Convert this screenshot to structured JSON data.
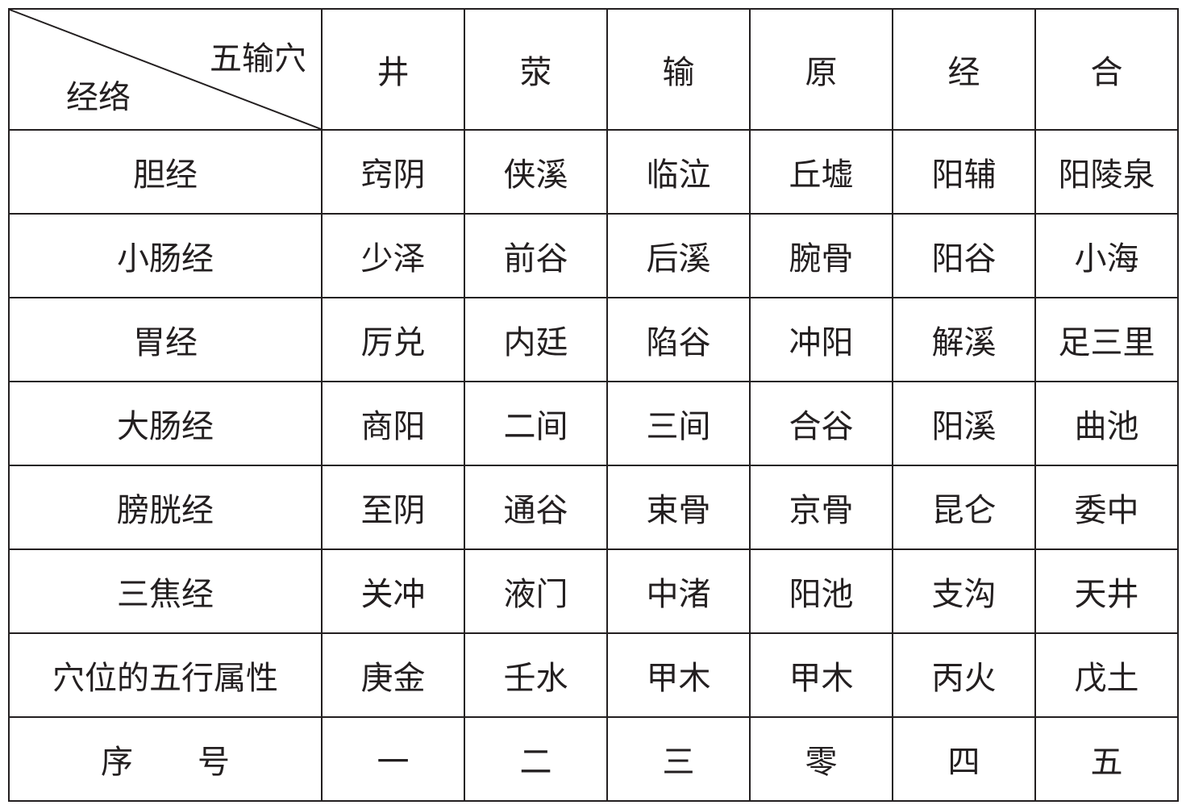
{
  "table": {
    "corner_top": "五输穴",
    "corner_bottom": "经络",
    "headers": [
      "井",
      "荥",
      "输",
      "原",
      "经",
      "合"
    ],
    "rows": [
      {
        "label": "胆经",
        "cells": [
          "窍阴",
          "侠溪",
          "临泣",
          "丘墟",
          "阳辅",
          "阳陵泉"
        ]
      },
      {
        "label": "小肠经",
        "cells": [
          "少泽",
          "前谷",
          "后溪",
          "腕骨",
          "阳谷",
          "小海"
        ]
      },
      {
        "label": "胃经",
        "cells": [
          "厉兑",
          "内廷",
          "陷谷",
          "冲阳",
          "解溪",
          "足三里"
        ]
      },
      {
        "label": "大肠经",
        "cells": [
          "商阳",
          "二间",
          "三间",
          "合谷",
          "阳溪",
          "曲池"
        ]
      },
      {
        "label": "膀胱经",
        "cells": [
          "至阴",
          "通谷",
          "束骨",
          "京骨",
          "昆仑",
          "委中"
        ]
      },
      {
        "label": "三焦经",
        "cells": [
          "关冲",
          "液门",
          "中渚",
          "阳池",
          "支沟",
          "天井"
        ]
      },
      {
        "label": "穴位的五行属性",
        "cells": [
          "庚金",
          "壬水",
          "甲木",
          "甲木",
          "丙火",
          "戊土"
        ]
      },
      {
        "label": "序　　号",
        "cells": [
          "一",
          "二",
          "三",
          "零",
          "四",
          "五"
        ]
      }
    ]
  }
}
